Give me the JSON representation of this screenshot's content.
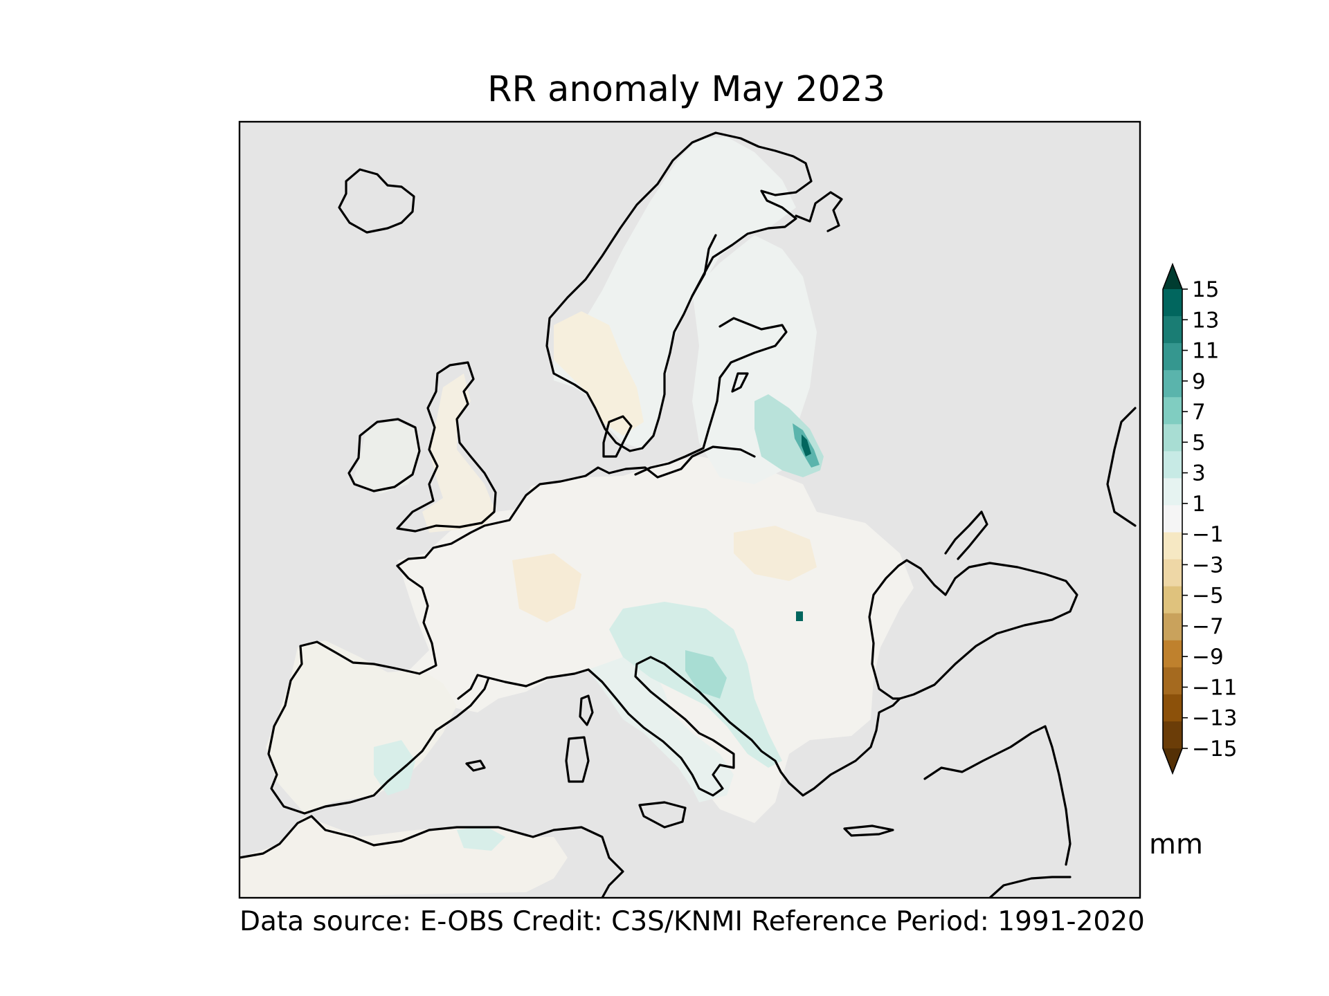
{
  "title": "RR anomaly May 2023",
  "footer": "Data source: E-OBS  Credit: C3S/KNMI  Reference Period: 1991-2020",
  "colorbar": {
    "unit": "mm",
    "ticks": [
      "15",
      "13",
      "11",
      "9",
      "7",
      "5",
      "3",
      "1",
      "−1",
      "−3",
      "−5",
      "−7",
      "−9",
      "−11",
      "−13",
      "−15"
    ],
    "tick_values": [
      15,
      13,
      11,
      9,
      7,
      5,
      3,
      1,
      -1,
      -3,
      -5,
      -7,
      -9,
      -11,
      -13,
      -15
    ],
    "colors_top_to_bottom": [
      "#003c30",
      "#01665e",
      "#1a7d74",
      "#35978f",
      "#5ab4ac",
      "#80cdc1",
      "#a8ddd3",
      "#c7eae5",
      "#e6f3f1",
      "#f5f5f5",
      "#f6e8c3",
      "#eed7a6",
      "#dfc27d",
      "#c9a25c",
      "#bf812d",
      "#a56a1f",
      "#8c510a",
      "#6b3d08",
      "#543005"
    ],
    "extend": "both"
  },
  "map": {
    "background_color": "#e5e5e5",
    "coastline_color": "#000000",
    "region": "Europe"
  }
}
